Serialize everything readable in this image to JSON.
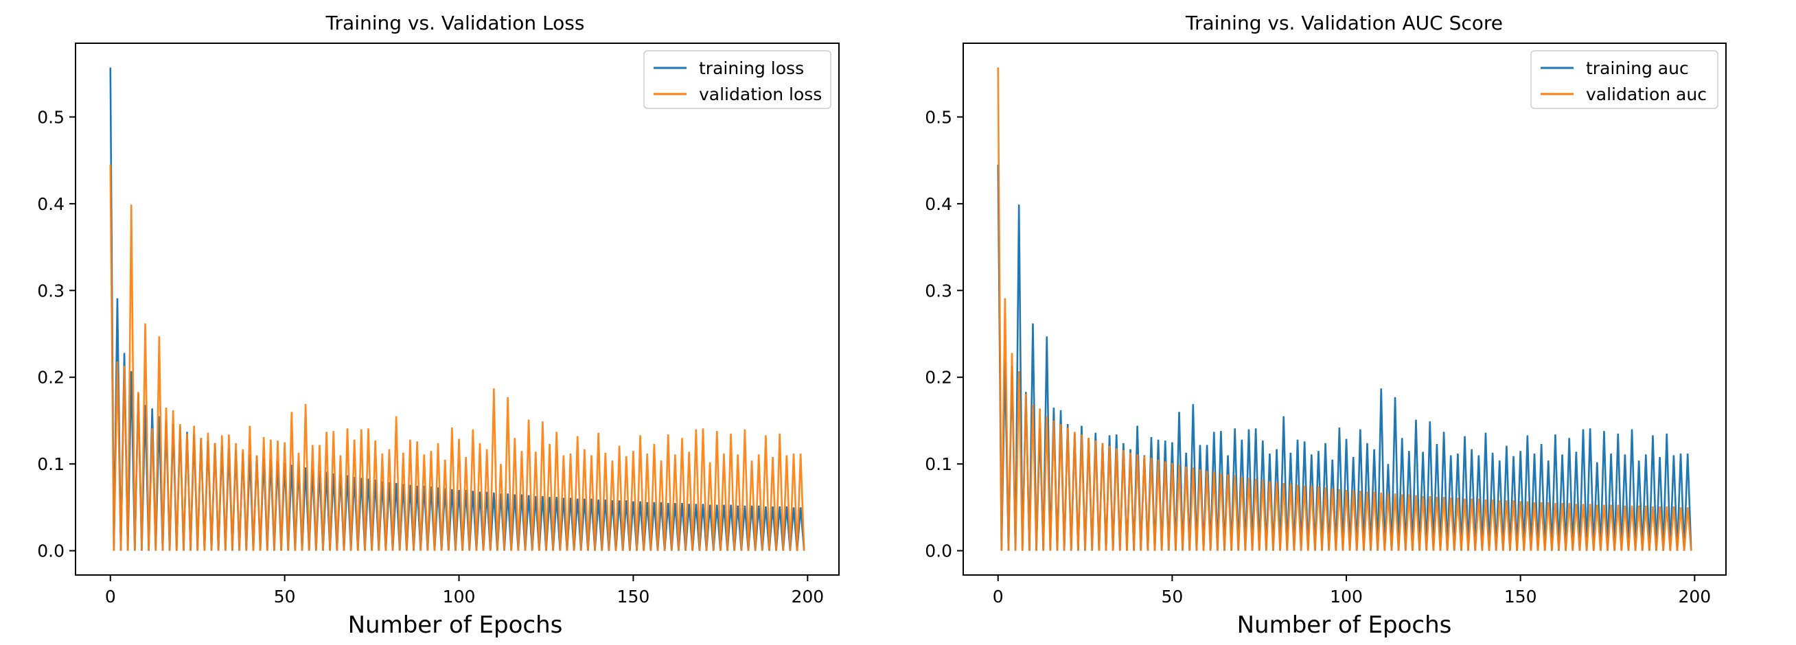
{
  "chart_data": [
    {
      "type": "line",
      "title": "Training vs. Validation Loss",
      "xlabel": "Number of Epochs",
      "ylabel": "",
      "xlim": [
        -10,
        209
      ],
      "ylim": [
        -0.028,
        0.585
      ],
      "xticks": [
        0,
        50,
        100,
        150,
        200
      ],
      "yticks": [
        0.0,
        0.1,
        0.2,
        0.3,
        0.4,
        0.5
      ],
      "ytick_labels": [
        "0.0",
        "0.1",
        "0.2",
        "0.3",
        "0.4",
        "0.5"
      ],
      "grid": false,
      "legend": "top-right",
      "pattern": "alternating: even epochs = series value, odd epochs = 0",
      "series": [
        {
          "name": "training loss",
          "color": "#1f77b4",
          "x_step": 2,
          "values": [
            0.557,
            0.291,
            0.228,
            0.207,
            0.181,
            0.168,
            0.164,
            0.155,
            0.15,
            0.146,
            0.142,
            0.137,
            0.134,
            0.13,
            0.127,
            0.124,
            0.121,
            0.118,
            0.116,
            0.113,
            0.111,
            0.109,
            0.107,
            0.105,
            0.103,
            0.101,
            0.099,
            0.097,
            0.096,
            0.094,
            0.092,
            0.091,
            0.089,
            0.088,
            0.087,
            0.085,
            0.084,
            0.083,
            0.082,
            0.08,
            0.079,
            0.078,
            0.077,
            0.076,
            0.075,
            0.075,
            0.074,
            0.073,
            0.072,
            0.071,
            0.07,
            0.07,
            0.069,
            0.068,
            0.068,
            0.067,
            0.066,
            0.066,
            0.065,
            0.065,
            0.064,
            0.063,
            0.063,
            0.062,
            0.062,
            0.061,
            0.061,
            0.06,
            0.06,
            0.06,
            0.059,
            0.059,
            0.058,
            0.058,
            0.058,
            0.057,
            0.057,
            0.056,
            0.056,
            0.056,
            0.055,
            0.055,
            0.055,
            0.054,
            0.054,
            0.054,
            0.053,
            0.053,
            0.053,
            0.053,
            0.052,
            0.052,
            0.052,
            0.052,
            0.051,
            0.051,
            0.051,
            0.051,
            0.05,
            0.05
          ]
        },
        {
          "name": "validation loss",
          "color": "#ff7f0e",
          "x_step": 2,
          "values": [
            0.445,
            0.218,
            0.213,
            0.399,
            0.183,
            0.262,
            0.141,
            0.247,
            0.165,
            0.162,
            0.146,
            0.135,
            0.144,
            0.13,
            0.136,
            0.124,
            0.133,
            0.134,
            0.124,
            0.117,
            0.144,
            0.11,
            0.131,
            0.128,
            0.127,
            0.125,
            0.16,
            0.113,
            0.169,
            0.122,
            0.122,
            0.137,
            0.138,
            0.11,
            0.141,
            0.128,
            0.14,
            0.141,
            0.127,
            0.112,
            0.117,
            0.155,
            0.113,
            0.128,
            0.126,
            0.111,
            0.115,
            0.124,
            0.105,
            0.142,
            0.129,
            0.108,
            0.14,
            0.124,
            0.117,
            0.187,
            0.1,
            0.177,
            0.13,
            0.115,
            0.151,
            0.114,
            0.149,
            0.123,
            0.137,
            0.11,
            0.112,
            0.132,
            0.117,
            0.11,
            0.136,
            0.113,
            0.104,
            0.121,
            0.109,
            0.115,
            0.133,
            0.112,
            0.123,
            0.104,
            0.134,
            0.111,
            0.13,
            0.114,
            0.14,
            0.141,
            0.102,
            0.138,
            0.112,
            0.135,
            0.111,
            0.14,
            0.104,
            0.111,
            0.133,
            0.108,
            0.135,
            0.11,
            0.112,
            0.112
          ]
        }
      ]
    },
    {
      "type": "line",
      "title": "Training vs. Validation AUC Score",
      "xlabel": "Number of Epochs",
      "ylabel": "",
      "xlim": [
        -10,
        209
      ],
      "ylim": [
        -0.028,
        0.585
      ],
      "xticks": [
        0,
        50,
        100,
        150,
        200
      ],
      "yticks": [
        0.0,
        0.1,
        0.2,
        0.3,
        0.4,
        0.5
      ],
      "ytick_labels": [
        "0.0",
        "0.1",
        "0.2",
        "0.3",
        "0.4",
        "0.5"
      ],
      "grid": false,
      "legend": "top-right",
      "pattern": "alternating: even epochs = series value, odd epochs = 0",
      "series": [
        {
          "name": "training auc",
          "color": "#1f77b4",
          "x_step": 2,
          "values": [
            0.445,
            0.218,
            0.213,
            0.399,
            0.183,
            0.262,
            0.141,
            0.247,
            0.165,
            0.162,
            0.146,
            0.135,
            0.144,
            0.13,
            0.136,
            0.124,
            0.133,
            0.134,
            0.124,
            0.117,
            0.144,
            0.11,
            0.131,
            0.128,
            0.127,
            0.125,
            0.16,
            0.113,
            0.169,
            0.122,
            0.122,
            0.137,
            0.138,
            0.11,
            0.141,
            0.128,
            0.14,
            0.141,
            0.127,
            0.112,
            0.117,
            0.155,
            0.113,
            0.128,
            0.126,
            0.111,
            0.115,
            0.124,
            0.105,
            0.142,
            0.129,
            0.108,
            0.14,
            0.124,
            0.117,
            0.187,
            0.1,
            0.177,
            0.13,
            0.115,
            0.151,
            0.114,
            0.149,
            0.123,
            0.137,
            0.11,
            0.112,
            0.132,
            0.117,
            0.11,
            0.136,
            0.113,
            0.104,
            0.121,
            0.109,
            0.115,
            0.133,
            0.112,
            0.123,
            0.104,
            0.134,
            0.111,
            0.13,
            0.114,
            0.14,
            0.141,
            0.102,
            0.138,
            0.112,
            0.135,
            0.111,
            0.14,
            0.104,
            0.111,
            0.133,
            0.108,
            0.135,
            0.11,
            0.112,
            0.112
          ]
        },
        {
          "name": "validation auc",
          "color": "#ff7f0e",
          "x_step": 2,
          "values": [
            0.557,
            0.291,
            0.228,
            0.207,
            0.181,
            0.168,
            0.164,
            0.155,
            0.15,
            0.146,
            0.142,
            0.137,
            0.134,
            0.13,
            0.127,
            0.124,
            0.121,
            0.118,
            0.116,
            0.113,
            0.111,
            0.109,
            0.107,
            0.105,
            0.103,
            0.101,
            0.099,
            0.097,
            0.096,
            0.094,
            0.092,
            0.091,
            0.089,
            0.088,
            0.087,
            0.085,
            0.084,
            0.083,
            0.082,
            0.08,
            0.079,
            0.078,
            0.077,
            0.076,
            0.075,
            0.075,
            0.074,
            0.073,
            0.072,
            0.071,
            0.07,
            0.07,
            0.069,
            0.068,
            0.068,
            0.067,
            0.066,
            0.066,
            0.065,
            0.065,
            0.064,
            0.063,
            0.063,
            0.062,
            0.062,
            0.061,
            0.061,
            0.06,
            0.06,
            0.06,
            0.059,
            0.059,
            0.058,
            0.058,
            0.058,
            0.057,
            0.057,
            0.056,
            0.056,
            0.056,
            0.055,
            0.055,
            0.055,
            0.054,
            0.054,
            0.054,
            0.053,
            0.053,
            0.053,
            0.053,
            0.052,
            0.052,
            0.052,
            0.052,
            0.051,
            0.051,
            0.051,
            0.051,
            0.05,
            0.05
          ]
        }
      ]
    }
  ]
}
